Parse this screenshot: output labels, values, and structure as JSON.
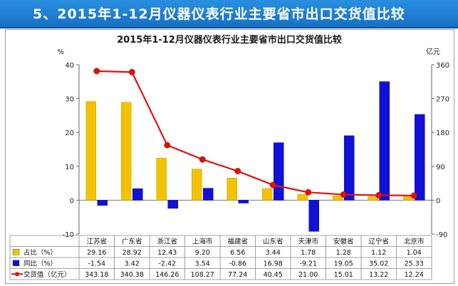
{
  "banner": {
    "title": "5、2015年1-12月仪器仪表行业主要省市出口交货值比较"
  },
  "chart_data": {
    "type": "bar",
    "title": "2015年1-12月仪器仪表行业主要省市出口交货值比较",
    "left_axis_unit": "%",
    "right_axis_unit": "亿元",
    "ylim_left": [
      -10,
      40
    ],
    "yticks_left": [
      -10,
      0,
      10,
      20,
      30,
      40
    ],
    "ylim_right": [
      -90,
      360
    ],
    "yticks_right": [
      -90,
      0,
      90,
      180,
      270,
      360
    ],
    "categories": [
      "江苏省",
      "广东省",
      "浙江省",
      "上海市",
      "福建省",
      "山东省",
      "天津市",
      "安徽省",
      "辽宁省",
      "北京市"
    ],
    "series": [
      {
        "name": "占比（%）",
        "type": "bar",
        "axis": "left",
        "color": "#f2c200",
        "values": [
          29.16,
          28.92,
          12.43,
          9.2,
          6.56,
          3.44,
          1.78,
          1.28,
          1.12,
          1.04
        ],
        "labels": [
          "29.16",
          "28.92",
          "12.43",
          "9.20",
          "6.56",
          "3.44",
          "1.78",
          "1.28",
          "1.12",
          "1.04"
        ]
      },
      {
        "name": "同比（%）",
        "type": "bar",
        "axis": "left",
        "color": "#1010d8",
        "values": [
          -1.54,
          3.42,
          -2.42,
          3.54,
          -0.86,
          16.98,
          -9.21,
          19.05,
          35.02,
          25.33
        ],
        "labels": [
          "-1.54",
          "3.42",
          "-2.42",
          "3.54",
          "-0.86",
          "16.98",
          "-9.21",
          "19.05",
          "35.02",
          "25.33"
        ]
      },
      {
        "name": "交货值（亿元）",
        "type": "line",
        "axis": "right",
        "color": "#e01010",
        "values": [
          343.18,
          340.38,
          146.26,
          108.27,
          77.24,
          40.45,
          21.0,
          15.01,
          13.22,
          12.24
        ],
        "labels": [
          "343.18",
          "340.38",
          "146.26",
          "108.27",
          "77.24",
          "40.45",
          "21.00",
          "15.01",
          "13.22",
          "12.24"
        ]
      }
    ]
  }
}
